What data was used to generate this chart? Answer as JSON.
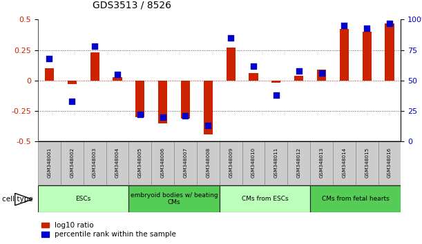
{
  "title": "GDS3513 / 8526",
  "samples": [
    "GSM348001",
    "GSM348002",
    "GSM348003",
    "GSM348004",
    "GSM348005",
    "GSM348006",
    "GSM348007",
    "GSM348008",
    "GSM348009",
    "GSM348010",
    "GSM348011",
    "GSM348012",
    "GSM348013",
    "GSM348014",
    "GSM348015",
    "GSM348016"
  ],
  "log10_ratio": [
    0.1,
    -0.03,
    0.23,
    0.03,
    -0.3,
    -0.35,
    -0.31,
    -0.44,
    0.27,
    0.06,
    -0.02,
    0.04,
    0.09,
    0.42,
    0.4,
    0.47
  ],
  "percentile_rank": [
    68,
    33,
    78,
    55,
    22,
    20,
    21,
    13,
    85,
    62,
    38,
    58,
    56,
    95,
    93,
    97
  ],
  "cell_types": [
    {
      "label": "ESCs",
      "start": 0,
      "end": 4,
      "color": "#bbffbb"
    },
    {
      "label": "embryoid bodies w/ beating\nCMs",
      "start": 4,
      "end": 8,
      "color": "#55cc55"
    },
    {
      "label": "CMs from ESCs",
      "start": 8,
      "end": 12,
      "color": "#bbffbb"
    },
    {
      "label": "CMs from fetal hearts",
      "start": 12,
      "end": 16,
      "color": "#55cc55"
    }
  ],
  "ylim_left": [
    -0.5,
    0.5
  ],
  "ylim_right": [
    0,
    100
  ],
  "yticks_left": [
    -0.5,
    -0.25,
    0,
    0.25,
    0.5
  ],
  "yticks_right": [
    0,
    25,
    50,
    75,
    100
  ],
  "bar_color_red": "#cc2200",
  "dot_color_blue": "#0000cc",
  "dotted_line_color": "#555555",
  "zero_line_color": "#cc2200",
  "legend_red_label": "log10 ratio",
  "legend_blue_label": "percentile rank within the sample",
  "background_color": "#ffffff",
  "bar_width": 0.4,
  "dot_size": 28
}
